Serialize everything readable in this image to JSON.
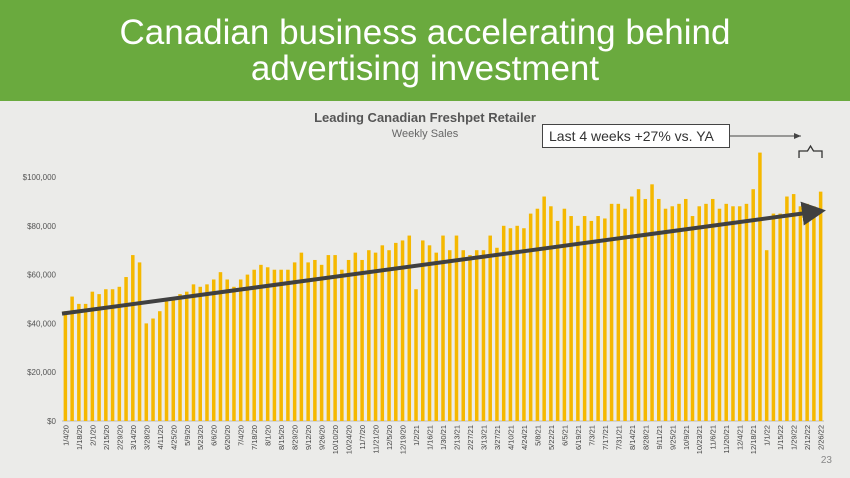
{
  "slide": {
    "title": "Canadian business accelerating behind advertising investment",
    "page_number": "23",
    "callout": "Last 4 weeks +27% vs. YA",
    "banner_color": "#6aaa3e"
  },
  "chart_data": {
    "type": "bar",
    "title": "Leading Canadian Freshpet Retailer",
    "subtitle": "Weekly Sales",
    "bar_color": "#f5b800",
    "trend_color": "#404040",
    "ylim": [
      0,
      100000
    ],
    "yticks": [
      0,
      20000,
      40000,
      60000,
      80000,
      100000
    ],
    "ytick_labels": [
      "$0",
      "$20,000",
      "$40,000",
      "$60,000",
      "$80,000",
      "$100,000"
    ],
    "grid": false,
    "legend": "none",
    "categories": [
      "1/4/20",
      "1/11/20",
      "1/18/20",
      "1/25/20",
      "2/1/20",
      "2/8/20",
      "2/15/20",
      "2/22/20",
      "2/29/20",
      "3/7/20",
      "3/14/20",
      "3/21/20",
      "3/28/20",
      "4/4/20",
      "4/11/20",
      "4/18/20",
      "4/25/20",
      "5/2/20",
      "5/9/20",
      "5/16/20",
      "5/23/20",
      "5/30/20",
      "6/6/20",
      "6/13/20",
      "6/20/20",
      "6/27/20",
      "7/4/20",
      "7/11/20",
      "7/18/20",
      "7/25/20",
      "8/1/20",
      "8/8/20",
      "8/15/20",
      "8/22/20",
      "8/29/20",
      "9/5/20",
      "9/12/20",
      "9/19/20",
      "9/26/20",
      "10/3/20",
      "10/10/20",
      "10/17/20",
      "10/24/20",
      "10/31/20",
      "11/7/20",
      "11/14/20",
      "11/21/20",
      "11/28/20",
      "12/5/20",
      "12/12/20",
      "12/19/20",
      "12/26/20",
      "1/2/21",
      "1/9/21",
      "1/16/21",
      "1/23/21",
      "1/30/21",
      "2/6/21",
      "2/13/21",
      "2/20/21",
      "2/27/21",
      "3/6/21",
      "3/13/21",
      "3/20/21",
      "3/27/21",
      "4/3/21",
      "4/10/21",
      "4/17/21",
      "4/24/21",
      "5/1/21",
      "5/8/21",
      "5/15/21",
      "5/22/21",
      "5/29/21",
      "6/5/21",
      "6/12/21",
      "6/19/21",
      "6/26/21",
      "7/3/21",
      "7/10/21",
      "7/17/21",
      "7/24/21",
      "7/31/21",
      "8/7/21",
      "8/14/21",
      "8/21/21",
      "8/28/21",
      "9/4/21",
      "9/11/21",
      "9/18/21",
      "9/25/21",
      "10/2/21",
      "10/9/21",
      "10/16/21",
      "10/23/21",
      "10/30/21",
      "11/6/21",
      "11/13/21",
      "11/20/21",
      "11/27/21",
      "12/4/21",
      "12/11/21",
      "12/18/21",
      "12/25/21",
      "1/1/22",
      "1/8/22",
      "1/15/22",
      "1/22/22",
      "1/29/22",
      "2/5/22",
      "2/12/22",
      "2/19/22",
      "2/26/22"
    ],
    "values": [
      45000,
      51000,
      48000,
      48000,
      53000,
      52000,
      54000,
      54000,
      55000,
      59000,
      68000,
      65000,
      40000,
      42000,
      45000,
      49000,
      50000,
      52000,
      53000,
      56000,
      55000,
      56000,
      58000,
      61000,
      58000,
      55000,
      58000,
      60000,
      62000,
      64000,
      63000,
      62000,
      62000,
      62000,
      65000,
      69000,
      65000,
      66000,
      64000,
      68000,
      68000,
      62000,
      66000,
      69000,
      66000,
      70000,
      69000,
      72000,
      70000,
      73000,
      74000,
      76000,
      54000,
      74000,
      72000,
      69000,
      76000,
      70000,
      76000,
      70000,
      68000,
      70000,
      70000,
      76000,
      71000,
      80000,
      79000,
      80000,
      79000,
      85000,
      87000,
      92000,
      88000,
      82000,
      87000,
      84000,
      80000,
      84000,
      82000,
      84000,
      83000,
      89000,
      89000,
      87000,
      92000,
      95000,
      91000,
      97000,
      91000,
      87000,
      88000,
      89000,
      91000,
      84000,
      88000,
      89000,
      91000,
      87000,
      89000,
      88000,
      88000,
      89000,
      95000,
      110000,
      70000,
      85000,
      85000,
      92000,
      93000,
      88000,
      89000,
      88000,
      94000
    ],
    "trend": [
      44000,
      86000
    ]
  }
}
